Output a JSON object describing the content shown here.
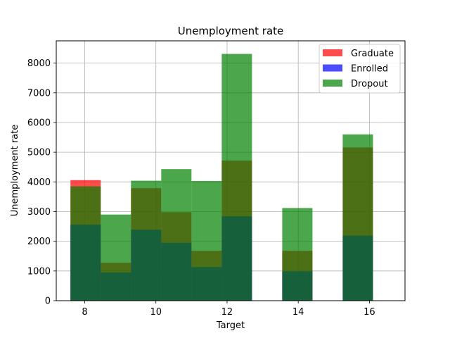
{
  "chart_data": {
    "type": "bar",
    "title": "Unemployment rate",
    "xlabel": "Target",
    "ylabel": "Unemployment rate",
    "xlim": [
      7.2,
      17.0
    ],
    "ylim": [
      0,
      8750
    ],
    "xticks": [
      8,
      10,
      12,
      14,
      16
    ],
    "yticks": [
      0,
      1000,
      2000,
      3000,
      4000,
      5000,
      6000,
      7000,
      8000
    ],
    "grid": true,
    "legend_position": "top-right",
    "bins": [
      [
        7.6,
        8.45
      ],
      [
        8.45,
        9.3
      ],
      [
        9.3,
        10.15
      ],
      [
        10.15,
        11.0
      ],
      [
        11.0,
        11.85
      ],
      [
        11.85,
        12.7
      ],
      [
        12.7,
        13.55
      ],
      [
        13.55,
        14.4
      ],
      [
        14.4,
        15.25
      ],
      [
        15.25,
        16.1
      ]
    ],
    "series": [
      {
        "name": "Graduate",
        "color": "#ff0000",
        "opacity": 0.7,
        "values": [
          4060,
          1280,
          3790,
          2980,
          1680,
          4720,
          0,
          1680,
          0,
          5160
        ]
      },
      {
        "name": "Enrolled",
        "color": "#0000ff",
        "opacity": 0.7,
        "values": [
          2560,
          950,
          2390,
          1950,
          1130,
          2840,
          0,
          990,
          0,
          2190
        ]
      },
      {
        "name": "Dropout",
        "color": "#008000",
        "opacity": 0.7,
        "values": [
          3850,
          2900,
          4040,
          4430,
          4030,
          8310,
          0,
          3120,
          0,
          5600
        ]
      }
    ]
  }
}
